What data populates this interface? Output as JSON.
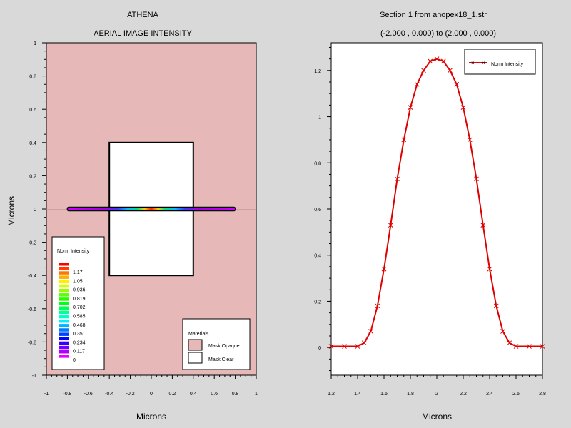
{
  "left_panel": {
    "title": "ATHENA",
    "subtitle": "AERIAL IMAGE INTENSITY",
    "xlabel": "Microns",
    "ylabel": "Microns",
    "background_color": "#e6b8b8",
    "x_ticks": [
      "-1",
      "-0.8",
      "-0.6",
      "-0.4",
      "-0.2",
      "0",
      "0.2",
      "0.4",
      "0.6",
      "0.8",
      "1"
    ],
    "y_ticks": [
      "1",
      "0.8",
      "0.6",
      "0.4",
      "0.2",
      "0",
      "-0.2",
      "-0.4",
      "-0.6",
      "-0.8",
      "-1"
    ],
    "colorbar": {
      "title": "Norm Intensity",
      "labels": [
        "1.17",
        "1.05",
        "0.936",
        "0.819",
        "0.702",
        "0.585",
        "0.468",
        "0.351",
        "0.234",
        "0.117",
        "0"
      ]
    },
    "materials": {
      "title": "Materials",
      "items": [
        {
          "label": "Mask Opaque",
          "color": "#e6b8b8"
        },
        {
          "label": "Mask Clear",
          "color": "#ffffff"
        }
      ]
    }
  },
  "chart_data": [
    {
      "type": "heatmap",
      "title": "ATHENA",
      "subtitle": "AERIAL IMAGE INTENSITY",
      "xlabel": "Microns",
      "ylabel": "Microns",
      "xlim": [
        -1,
        1
      ],
      "ylim": [
        -1,
        1
      ],
      "mask_clear_region": {
        "x": [
          -0.4,
          0.4
        ],
        "y": [
          -0.4,
          0.4
        ]
      },
      "intensity_strip": {
        "x": [
          -0.8,
          0.8
        ],
        "y": 0,
        "peak_at_x": 0
      },
      "colorbar_range": [
        0,
        1.17
      ]
    },
    {
      "type": "line",
      "title": "Section 1 from anopex18_1.str",
      "subtitle": "(-2.000 , 0.000) to (2.000 , 0.000)",
      "xlabel": "Microns",
      "ylabel": "",
      "xlim": [
        1.2,
        2.8
      ],
      "ylim": [
        -0.12,
        1.32
      ],
      "x_ticks": [
        "1.2",
        "1.4",
        "1.6",
        "1.8",
        "2",
        "2.2",
        "2.4",
        "2.6",
        "2.8"
      ],
      "y_ticks": [
        "1.2",
        "1",
        "0.8",
        "0.6",
        "0.4",
        "0.2",
        "0"
      ],
      "legend_position": "top-right",
      "series": [
        {
          "name": "Norm Intensity",
          "color": "#e00000",
          "x": [
            1.2,
            1.3,
            1.4,
            1.45,
            1.5,
            1.55,
            1.6,
            1.65,
            1.7,
            1.75,
            1.8,
            1.85,
            1.9,
            1.95,
            2.0,
            2.05,
            2.1,
            2.15,
            2.2,
            2.25,
            2.3,
            2.35,
            2.4,
            2.45,
            2.5,
            2.55,
            2.6,
            2.7,
            2.8
          ],
          "values": [
            0.005,
            0.005,
            0.005,
            0.02,
            0.07,
            0.18,
            0.34,
            0.53,
            0.73,
            0.9,
            1.04,
            1.14,
            1.2,
            1.24,
            1.25,
            1.24,
            1.2,
            1.14,
            1.04,
            0.9,
            0.73,
            0.53,
            0.34,
            0.18,
            0.07,
            0.02,
            0.005,
            0.005,
            0.005
          ]
        }
      ]
    }
  ]
}
